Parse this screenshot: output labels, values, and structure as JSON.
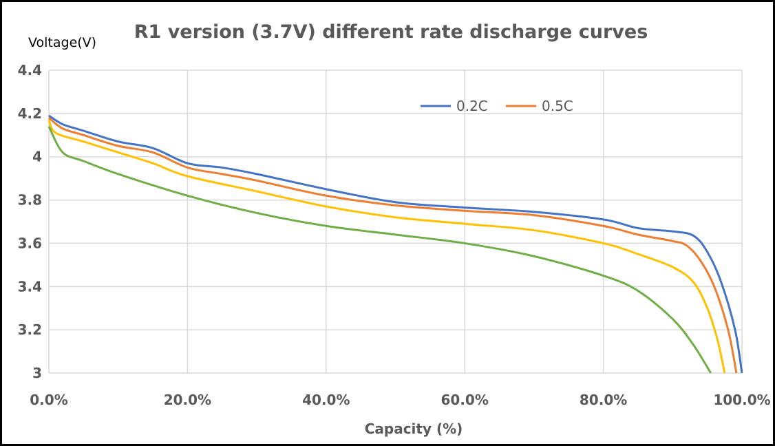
{
  "chart_data": {
    "type": "line",
    "title": "R1 version (3.7V) different rate discharge curves",
    "ylabel": "Voltage(V)",
    "xlabel": "Capacity (%)",
    "xlim": [
      0,
      100
    ],
    "ylim": [
      3,
      4.4
    ],
    "xticks": [
      "0.0%",
      "20.0%",
      "40.0%",
      "60.0%",
      "80.0%",
      "100.0%"
    ],
    "yticks": [
      "3",
      "3.2",
      "3.4",
      "3.6",
      "3.8",
      "4",
      "4.2",
      "4.4"
    ],
    "grid": true,
    "legend_position": "top-right",
    "series": [
      {
        "name": "0.2C",
        "color": "#4472C4",
        "points": [
          [
            0,
            4.19
          ],
          [
            2,
            4.15
          ],
          [
            5,
            4.12
          ],
          [
            10,
            4.07
          ],
          [
            15,
            4.04
          ],
          [
            20,
            3.97
          ],
          [
            25,
            3.95
          ],
          [
            30,
            3.92
          ],
          [
            40,
            3.85
          ],
          [
            50,
            3.79
          ],
          [
            60,
            3.765
          ],
          [
            70,
            3.745
          ],
          [
            80,
            3.71
          ],
          [
            85,
            3.67
          ],
          [
            90,
            3.655
          ],
          [
            93,
            3.635
          ],
          [
            95,
            3.56
          ],
          [
            97,
            3.42
          ],
          [
            99,
            3.2
          ],
          [
            100,
            3.0
          ]
        ]
      },
      {
        "name": "0.5C",
        "color": "#ED7D31",
        "points": [
          [
            0,
            4.18
          ],
          [
            2,
            4.13
          ],
          [
            5,
            4.1
          ],
          [
            10,
            4.05
          ],
          [
            15,
            4.02
          ],
          [
            20,
            3.95
          ],
          [
            25,
            3.92
          ],
          [
            30,
            3.89
          ],
          [
            40,
            3.82
          ],
          [
            50,
            3.775
          ],
          [
            60,
            3.75
          ],
          [
            70,
            3.73
          ],
          [
            80,
            3.68
          ],
          [
            85,
            3.64
          ],
          [
            90,
            3.61
          ],
          [
            92,
            3.59
          ],
          [
            94,
            3.52
          ],
          [
            96,
            3.4
          ],
          [
            98,
            3.2
          ],
          [
            99.2,
            3.0
          ]
        ]
      },
      {
        "color": "#FFC000",
        "points": [
          [
            0,
            4.17
          ],
          [
            1,
            4.11
          ],
          [
            5,
            4.07
          ],
          [
            10,
            4.02
          ],
          [
            15,
            3.97
          ],
          [
            20,
            3.91
          ],
          [
            30,
            3.84
          ],
          [
            40,
            3.77
          ],
          [
            50,
            3.72
          ],
          [
            60,
            3.69
          ],
          [
            70,
            3.66
          ],
          [
            80,
            3.6
          ],
          [
            85,
            3.55
          ],
          [
            90,
            3.49
          ],
          [
            93,
            3.42
          ],
          [
            95,
            3.3
          ],
          [
            96.5,
            3.15
          ],
          [
            97.5,
            3.0
          ]
        ]
      },
      {
        "color": "#70AD47",
        "points": [
          [
            0,
            4.14
          ],
          [
            2,
            4.02
          ],
          [
            5,
            3.98
          ],
          [
            10,
            3.92
          ],
          [
            20,
            3.82
          ],
          [
            30,
            3.74
          ],
          [
            40,
            3.68
          ],
          [
            50,
            3.64
          ],
          [
            60,
            3.6
          ],
          [
            70,
            3.54
          ],
          [
            80,
            3.45
          ],
          [
            85,
            3.38
          ],
          [
            90,
            3.25
          ],
          [
            93,
            3.13
          ],
          [
            95.5,
            3.0
          ]
        ]
      }
    ]
  }
}
